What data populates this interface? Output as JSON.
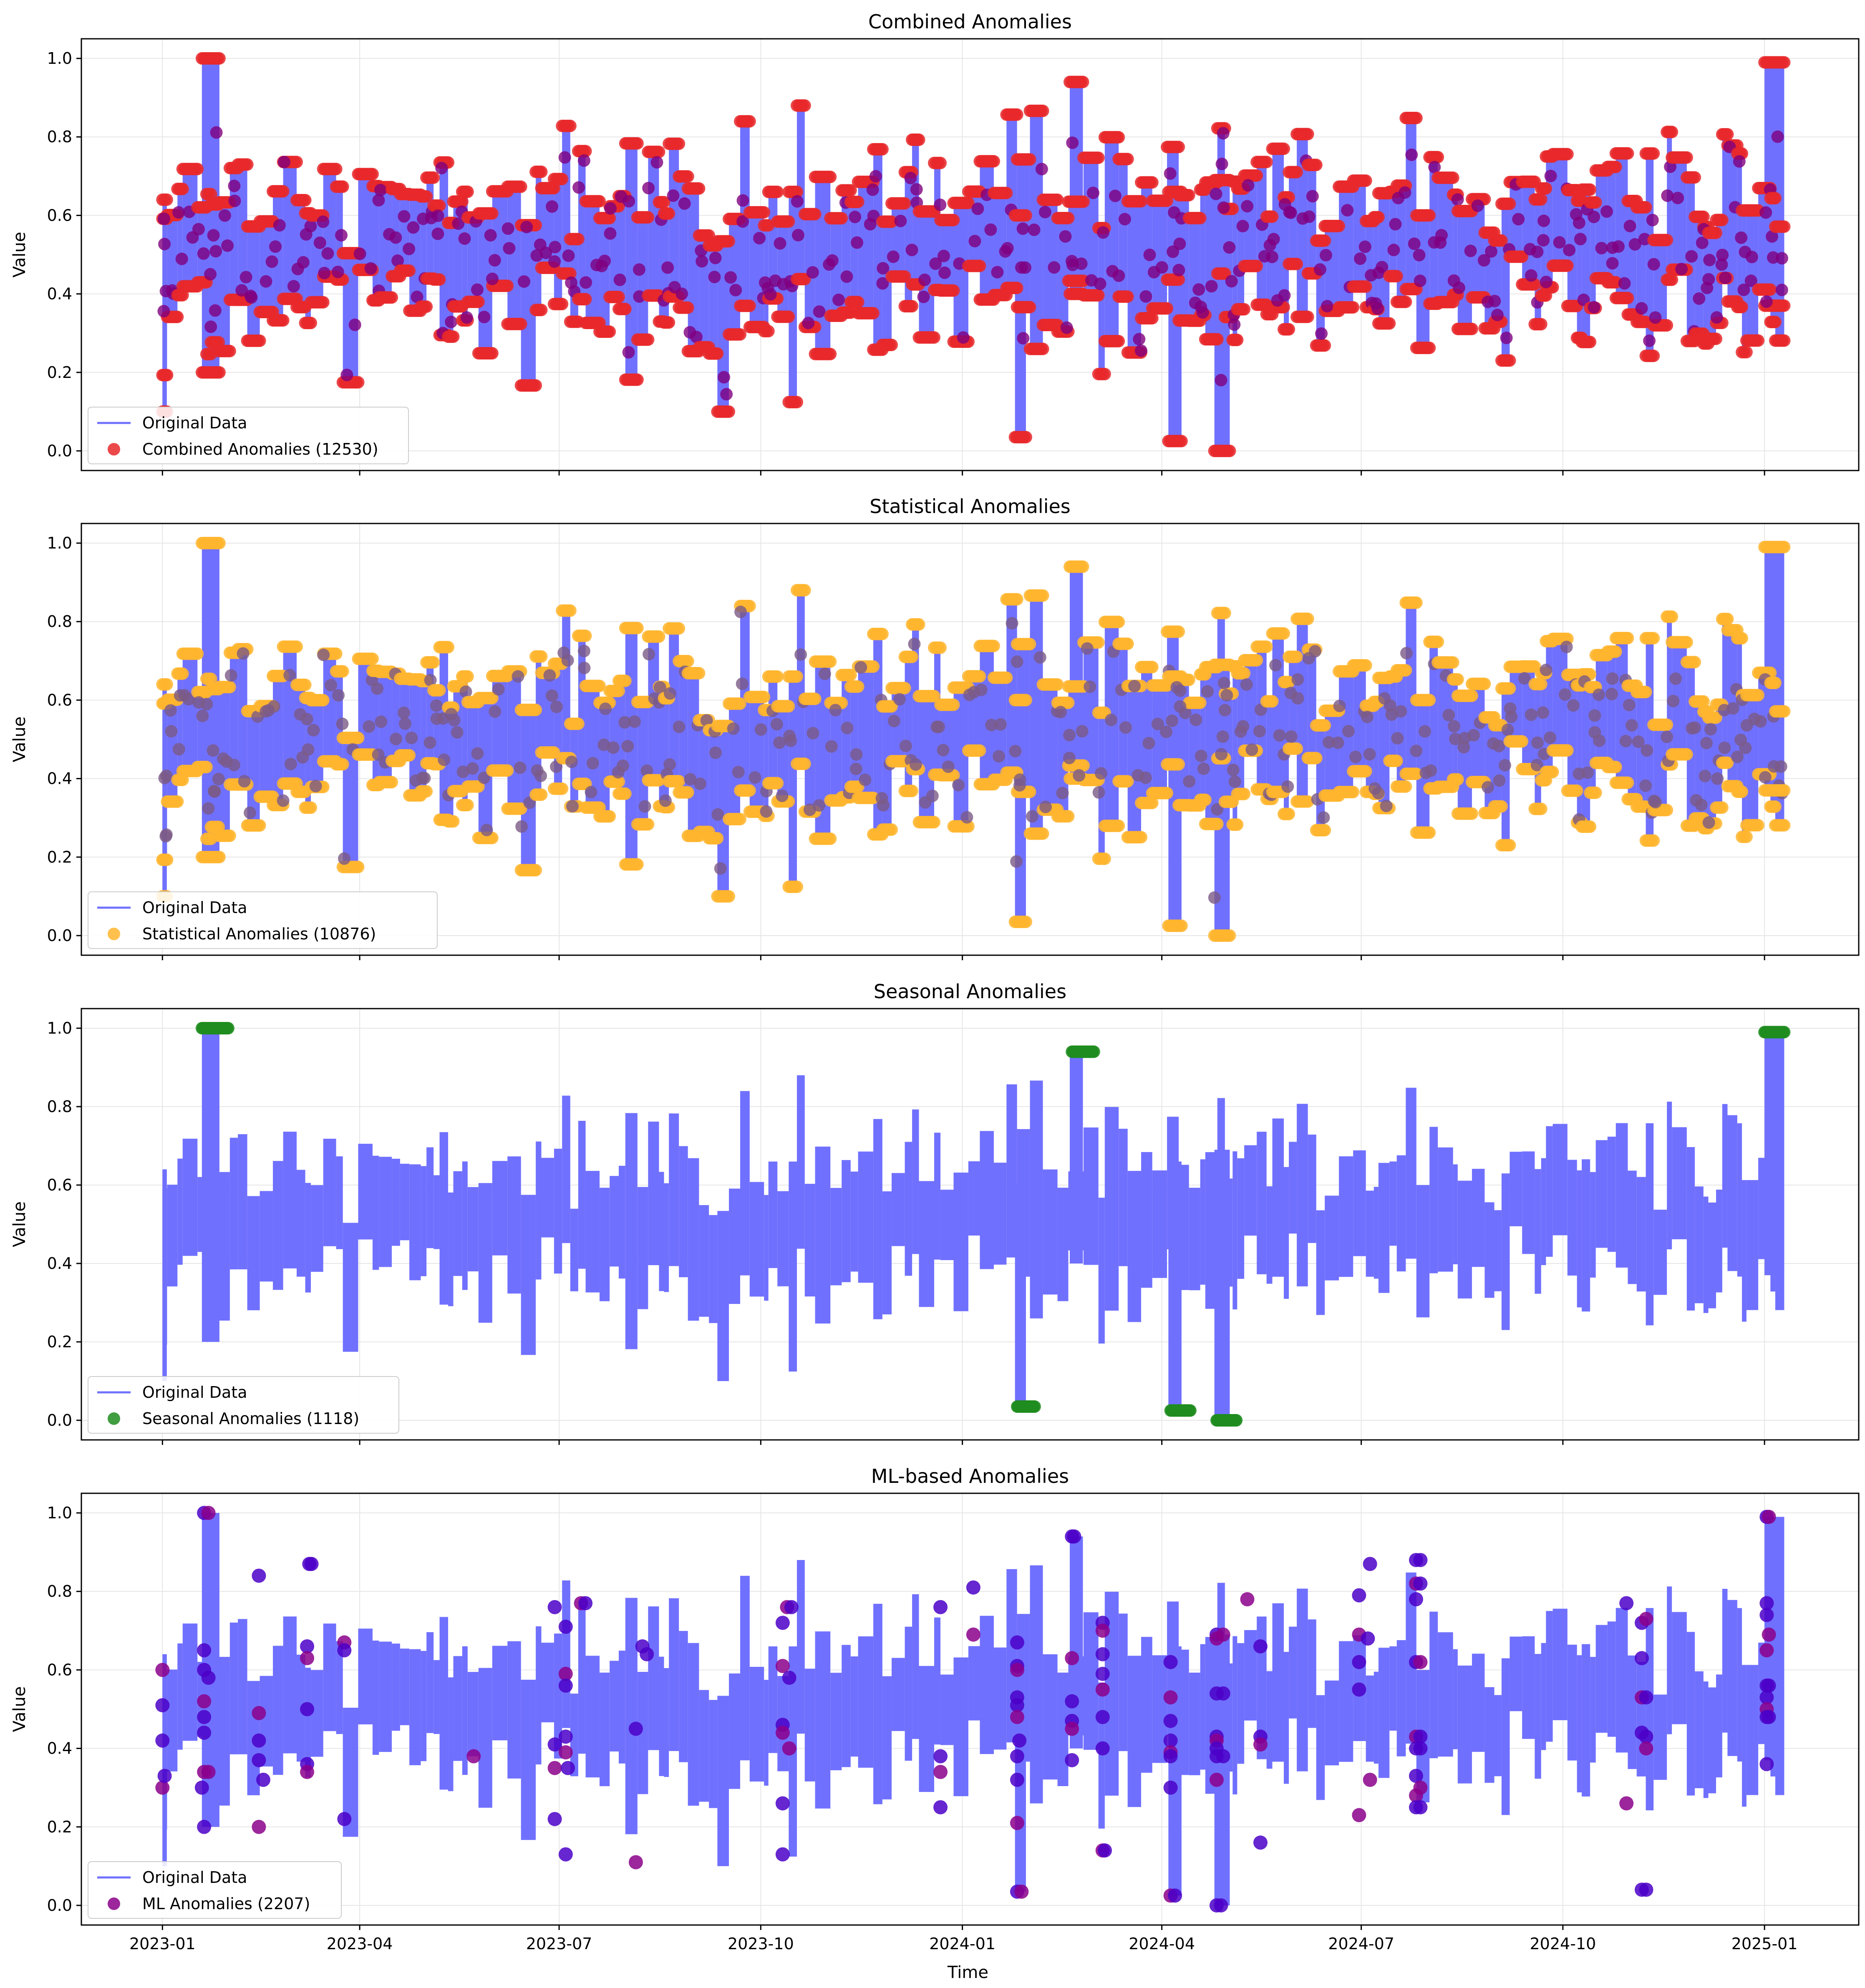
{
  "figure": {
    "xlabel": "Time",
    "xticks": [
      "2023-01",
      "2023-04",
      "2023-07",
      "2023-10",
      "2024-01",
      "2024-04",
      "2024-07",
      "2024-10",
      "2025-01"
    ],
    "xlim": [
      "2022-11-25",
      "2025-02-13"
    ],
    "data_range": [
      "2023-01-01",
      "2025-01-10"
    ],
    "line_color": "#7070ff",
    "grid": true
  },
  "chart_data": [
    {
      "type": "line",
      "title": "Combined Anomalies",
      "ylabel": "Value",
      "ylim": [
        -0.05,
        1.05
      ],
      "yticks": [
        "0.0",
        "0.2",
        "0.4",
        "0.6",
        "0.8",
        "1.0"
      ],
      "grid": true,
      "legend_position": "lower-left",
      "series": [
        {
          "name": "Original Data",
          "type": "line",
          "color": "#7070ff",
          "x_range": [
            "2023-01-01",
            "2025-01-10"
          ],
          "y_range": [
            0.0,
            1.0
          ]
        },
        {
          "name": "Combined Anomalies (12530)",
          "type": "scatter",
          "color": "#e8282a",
          "overlay_color": "#800080",
          "count": 12530,
          "coverage": "all"
        }
      ],
      "legend": [
        "Original Data",
        "Combined Anomalies (12530)"
      ]
    },
    {
      "type": "line",
      "title": "Statistical Anomalies",
      "ylabel": "Value",
      "ylim": [
        -0.05,
        1.05
      ],
      "yticks": [
        "0.0",
        "0.2",
        "0.4",
        "0.6",
        "0.8",
        "1.0"
      ],
      "grid": true,
      "legend_position": "lower-left",
      "series": [
        {
          "name": "Original Data",
          "type": "line",
          "color": "#7070ff",
          "x_range": [
            "2023-01-01",
            "2025-01-10"
          ],
          "y_range": [
            0.0,
            1.0
          ]
        },
        {
          "name": "Statistical Anomalies (10876)",
          "type": "scatter",
          "color": "#ffb52e",
          "overlay_color": "#7a5a86",
          "count": 10876,
          "coverage": "all"
        }
      ],
      "legend": [
        "Original Data",
        "Statistical Anomalies (10876)"
      ]
    },
    {
      "type": "line",
      "title": "Seasonal Anomalies",
      "ylabel": "Value",
      "ylim": [
        -0.05,
        1.05
      ],
      "yticks": [
        "0.0",
        "0.2",
        "0.4",
        "0.6",
        "0.8",
        "1.0"
      ],
      "grid": true,
      "legend_position": "lower-left",
      "series": [
        {
          "name": "Original Data",
          "type": "line",
          "color": "#7070ff",
          "x_range": [
            "2023-01-01",
            "2025-01-10"
          ],
          "y_range": [
            0.0,
            1.0
          ]
        },
        {
          "name": "Seasonal Anomalies (1118)",
          "type": "scatter",
          "color": "#1f8c1f",
          "count": 1118,
          "clusters": [
            {
              "x": [
                "2023-01-19",
                "2023-01-31"
              ],
              "y": 1.0
            },
            {
              "x": [
                "2024-01-26",
                "2024-02-03"
              ],
              "y": 0.035
            },
            {
              "x": [
                "2024-02-20",
                "2024-03-01"
              ],
              "y": 0.94
            },
            {
              "x": [
                "2024-04-05",
                "2024-04-14"
              ],
              "y": 0.025
            },
            {
              "x": [
                "2024-04-26",
                "2024-05-05"
              ],
              "y": 0.0
            },
            {
              "x": [
                "2025-01-01",
                "2025-01-10"
              ],
              "y": 0.99
            }
          ]
        }
      ],
      "legend": [
        "Original Data",
        "Seasonal Anomalies (1118)"
      ]
    },
    {
      "type": "line",
      "title": "ML-based Anomalies",
      "ylabel": "Value",
      "ylim": [
        -0.05,
        1.05
      ],
      "yticks": [
        "0.0",
        "0.2",
        "0.4",
        "0.6",
        "0.8",
        "1.0"
      ],
      "grid": true,
      "legend_position": "lower-left",
      "series": [
        {
          "name": "Original Data",
          "type": "line",
          "color": "#7070ff",
          "x_range": [
            "2023-01-01",
            "2025-01-10"
          ],
          "y_range": [
            0.0,
            1.0
          ]
        },
        {
          "name": "ML Anomalies (2207)",
          "type": "scatter",
          "color": "#8b008b",
          "overlay_color": "#4b00c8",
          "count": 2207,
          "points": [
            [
              "2023-01-01",
              0.6
            ],
            [
              "2023-01-01",
              0.51
            ],
            [
              "2023-01-01",
              0.42
            ],
            [
              "2023-01-01",
              0.3
            ],
            [
              "2023-01-02",
              0.33
            ],
            [
              "2023-01-20",
              1.0
            ],
            [
              "2023-01-22",
              1.0
            ],
            [
              "2023-01-20",
              0.65
            ],
            [
              "2023-01-20",
              0.6
            ],
            [
              "2023-01-20",
              0.52
            ],
            [
              "2023-01-20",
              0.48
            ],
            [
              "2023-01-20",
              0.44
            ],
            [
              "2023-01-20",
              0.34
            ],
            [
              "2023-01-20",
              0.2
            ],
            [
              "2023-01-22",
              0.58
            ],
            [
              "2023-01-22",
              0.34
            ],
            [
              "2023-01-19",
              0.3
            ],
            [
              "2023-02-14",
              0.84
            ],
            [
              "2023-02-14",
              0.49
            ],
            [
              "2023-02-14",
              0.42
            ],
            [
              "2023-02-14",
              0.37
            ],
            [
              "2023-02-14",
              0.2
            ],
            [
              "2023-02-16",
              0.32
            ],
            [
              "2023-03-08",
              0.66
            ],
            [
              "2023-03-08",
              0.63
            ],
            [
              "2023-03-08",
              0.5
            ],
            [
              "2023-03-08",
              0.36
            ],
            [
              "2023-03-08",
              0.34
            ],
            [
              "2023-03-09",
              0.87
            ],
            [
              "2023-03-10",
              0.87
            ],
            [
              "2023-03-25",
              0.67
            ],
            [
              "2023-03-25",
              0.65
            ],
            [
              "2023-03-25",
              0.22
            ],
            [
              "2023-05-23",
              0.38
            ],
            [
              "2023-06-29",
              0.76
            ],
            [
              "2023-06-29",
              0.41
            ],
            [
              "2023-06-29",
              0.35
            ],
            [
              "2023-06-29",
              0.22
            ],
            [
              "2023-07-04",
              0.71
            ],
            [
              "2023-07-04",
              0.59
            ],
            [
              "2023-07-04",
              0.56
            ],
            [
              "2023-07-04",
              0.43
            ],
            [
              "2023-07-04",
              0.39
            ],
            [
              "2023-07-05",
              0.35
            ],
            [
              "2023-07-04",
              0.13
            ],
            [
              "2023-07-11",
              0.77
            ],
            [
              "2023-07-13",
              0.77
            ],
            [
              "2023-08-05",
              0.45
            ],
            [
              "2023-08-05",
              0.11
            ],
            [
              "2023-08-08",
              0.66
            ],
            [
              "2023-08-10",
              0.64
            ],
            [
              "2023-10-11",
              0.61
            ],
            [
              "2023-10-11",
              0.72
            ],
            [
              "2023-10-11",
              0.46
            ],
            [
              "2023-10-11",
              0.44
            ],
            [
              "2023-10-11",
              0.26
            ],
            [
              "2023-10-11",
              0.13
            ],
            [
              "2023-10-13",
              0.76
            ],
            [
              "2023-10-15",
              0.76
            ],
            [
              "2023-10-14",
              0.58
            ],
            [
              "2023-10-14",
              0.4
            ],
            [
              "2023-12-22",
              0.76
            ],
            [
              "2023-12-22",
              0.38
            ],
            [
              "2023-12-22",
              0.34
            ],
            [
              "2023-12-22",
              0.25
            ],
            [
              "2024-01-06",
              0.81
            ],
            [
              "2024-01-06",
              0.69
            ],
            [
              "2024-01-26",
              0.67
            ],
            [
              "2024-01-26",
              0.61
            ],
            [
              "2024-01-26",
              0.6
            ],
            [
              "2024-01-26",
              0.53
            ],
            [
              "2024-01-26",
              0.51
            ],
            [
              "2024-01-26",
              0.48
            ],
            [
              "2024-01-26",
              0.38
            ],
            [
              "2024-01-26",
              0.32
            ],
            [
              "2024-01-26",
              0.21
            ],
            [
              "2024-01-26",
              0.035
            ],
            [
              "2024-01-27",
              0.42
            ],
            [
              "2024-01-28",
              0.035
            ],
            [
              "2024-02-20",
              0.94
            ],
            [
              "2024-02-21",
              0.94
            ],
            [
              "2024-02-20",
              0.63
            ],
            [
              "2024-02-20",
              0.52
            ],
            [
              "2024-02-20",
              0.47
            ],
            [
              "2024-02-20",
              0.45
            ],
            [
              "2024-02-20",
              0.37
            ],
            [
              "2024-03-05",
              0.72
            ],
            [
              "2024-03-05",
              0.7
            ],
            [
              "2024-03-05",
              0.64
            ],
            [
              "2024-03-05",
              0.59
            ],
            [
              "2024-03-05",
              0.55
            ],
            [
              "2024-03-05",
              0.48
            ],
            [
              "2024-03-05",
              0.4
            ],
            [
              "2024-03-05",
              0.14
            ],
            [
              "2024-03-06",
              0.14
            ],
            [
              "2024-04-05",
              0.62
            ],
            [
              "2024-04-05",
              0.53
            ],
            [
              "2024-04-05",
              0.47
            ],
            [
              "2024-04-05",
              0.42
            ],
            [
              "2024-04-05",
              0.39
            ],
            [
              "2024-04-05",
              0.38
            ],
            [
              "2024-04-05",
              0.3
            ],
            [
              "2024-04-05",
              0.025
            ],
            [
              "2024-04-07",
              0.025
            ],
            [
              "2024-04-26",
              0.69
            ],
            [
              "2024-04-26",
              0.68
            ],
            [
              "2024-04-26",
              0.54
            ],
            [
              "2024-04-26",
              0.43
            ],
            [
              "2024-04-26",
              0.42
            ],
            [
              "2024-04-26",
              0.4
            ],
            [
              "2024-04-26",
              0.38
            ],
            [
              "2024-04-26",
              0.32
            ],
            [
              "2024-04-26",
              0.0
            ],
            [
              "2024-04-28",
              0.0
            ],
            [
              "2024-04-29",
              0.69
            ],
            [
              "2024-04-29",
              0.54
            ],
            [
              "2024-04-29",
              0.38
            ],
            [
              "2024-05-10",
              0.78
            ],
            [
              "2024-05-16",
              0.66
            ],
            [
              "2024-05-16",
              0.43
            ],
            [
              "2024-05-16",
              0.41
            ],
            [
              "2024-05-16",
              0.16
            ],
            [
              "2024-06-30",
              0.79
            ],
            [
              "2024-06-30",
              0.69
            ],
            [
              "2024-06-30",
              0.62
            ],
            [
              "2024-06-30",
              0.55
            ],
            [
              "2024-06-30",
              0.23
            ],
            [
              "2024-07-05",
              0.87
            ],
            [
              "2024-07-04",
              0.68
            ],
            [
              "2024-07-05",
              0.32
            ],
            [
              "2024-07-26",
              0.88
            ],
            [
              "2024-07-28",
              0.88
            ],
            [
              "2024-07-26",
              0.82
            ],
            [
              "2024-07-26",
              0.78
            ],
            [
              "2024-07-26",
              0.62
            ],
            [
              "2024-07-26",
              0.43
            ],
            [
              "2024-07-26",
              0.4
            ],
            [
              "2024-07-26",
              0.33
            ],
            [
              "2024-07-26",
              0.28
            ],
            [
              "2024-07-26",
              0.25
            ],
            [
              "2024-07-28",
              0.82
            ],
            [
              "2024-07-28",
              0.62
            ],
            [
              "2024-07-28",
              0.43
            ],
            [
              "2024-07-28",
              0.4
            ],
            [
              "2024-07-28",
              0.3
            ],
            [
              "2024-07-28",
              0.25
            ],
            [
              "2024-10-30",
              0.77
            ],
            [
              "2024-10-30",
              0.26
            ],
            [
              "2024-11-06",
              0.72
            ],
            [
              "2024-11-06",
              0.63
            ],
            [
              "2024-11-06",
              0.53
            ],
            [
              "2024-11-06",
              0.44
            ],
            [
              "2024-11-06",
              0.04
            ],
            [
              "2024-11-08",
              0.73
            ],
            [
              "2024-11-08",
              0.53
            ],
            [
              "2024-11-08",
              0.43
            ],
            [
              "2024-11-08",
              0.4
            ],
            [
              "2024-11-08",
              0.04
            ],
            [
              "2025-01-02",
              0.99
            ],
            [
              "2025-01-03",
              0.99
            ],
            [
              "2025-01-02",
              0.77
            ],
            [
              "2025-01-02",
              0.74
            ],
            [
              "2025-01-02",
              0.65
            ],
            [
              "2025-01-02",
              0.56
            ],
            [
              "2025-01-02",
              0.53
            ],
            [
              "2025-01-02",
              0.5
            ],
            [
              "2025-01-02",
              0.48
            ],
            [
              "2025-01-02",
              0.36
            ],
            [
              "2025-01-03",
              0.69
            ],
            [
              "2025-01-03",
              0.56
            ],
            [
              "2025-01-03",
              0.48
            ]
          ]
        }
      ],
      "legend": [
        "Original Data",
        "ML Anomalies (2207)"
      ]
    }
  ]
}
